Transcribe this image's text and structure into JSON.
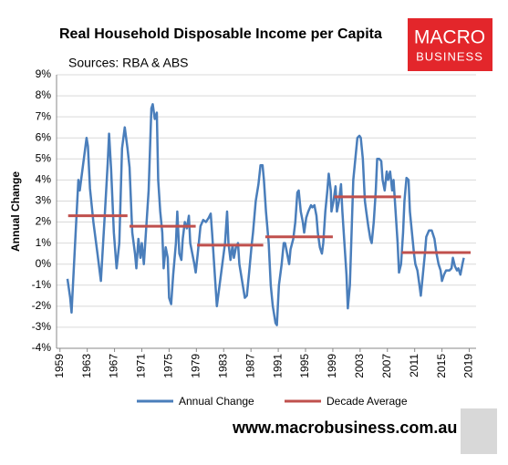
{
  "chart_data": {
    "type": "line",
    "title": "Real Household Disposable Income per Capita",
    "subtitle": "Sources: RBA & ABS",
    "y_label": "Annual Change",
    "logo": {
      "line1": "MACRO",
      "line2": "BUSINESS"
    },
    "footer": "www.macrobusiness.com.au",
    "xlim": [
      1958.5,
      2020
    ],
    "xticks": [
      1959,
      1963,
      1967,
      1971,
      1975,
      1979,
      1983,
      1987,
      1991,
      1995,
      1999,
      2003,
      2007,
      2011,
      2015,
      2019
    ],
    "ylim": [
      -4,
      9
    ],
    "yticks": [
      {
        "value": -4,
        "label": "-4%"
      },
      {
        "value": -3,
        "label": "-3%"
      },
      {
        "value": -2,
        "label": "-2%"
      },
      {
        "value": -1,
        "label": "-1%"
      },
      {
        "value": 0,
        "label": "0%"
      },
      {
        "value": 1,
        "label": "1%"
      },
      {
        "value": 2,
        "label": "2%"
      },
      {
        "value": 3,
        "label": "3%"
      },
      {
        "value": 4,
        "label": "4%"
      },
      {
        "value": 5,
        "label": "5%"
      },
      {
        "value": 6,
        "label": "6%"
      },
      {
        "value": 7,
        "label": "7%"
      },
      {
        "value": 8,
        "label": "8%"
      },
      {
        "value": 9,
        "label": "9%"
      }
    ],
    "grid": true,
    "series": [
      {
        "name": "Annual Change",
        "color": "#4a7ebb",
        "x": [
          1960.1,
          1960.5,
          1960.7,
          1961.3,
          1961.7,
          1961.9,
          1962.3,
          1962.9,
          1963.1,
          1963.4,
          1963.9,
          1964.5,
          1965.0,
          1965.6,
          1966.0,
          1966.2,
          1966.5,
          1966.9,
          1967.3,
          1967.7,
          1968.1,
          1968.5,
          1968.9,
          1969.2,
          1969.6,
          1970.0,
          1970.2,
          1970.5,
          1970.8,
          1971.0,
          1971.3,
          1971.6,
          1972.0,
          1972.4,
          1972.6,
          1972.9,
          1973.2,
          1973.4,
          1973.7,
          1974.0,
          1974.2,
          1974.5,
          1974.8,
          1975.0,
          1975.3,
          1975.6,
          1976.0,
          1976.2,
          1976.5,
          1976.8,
          1977.0,
          1977.3,
          1977.6,
          1977.9,
          1978.1,
          1978.4,
          1978.7,
          1978.9,
          1979.2,
          1979.6,
          1980.0,
          1980.4,
          1980.8,
          1981.1,
          1981.3,
          1981.6,
          1982.0,
          1982.4,
          1982.8,
          1983.2,
          1983.5,
          1983.7,
          1984.0,
          1984.3,
          1984.5,
          1984.8,
          1985.1,
          1985.3,
          1985.7,
          1986.1,
          1986.4,
          1986.7,
          1987.1,
          1987.3,
          1987.7,
          1988.1,
          1988.4,
          1988.7,
          1988.9,
          1989.2,
          1989.6,
          1989.9,
          1990.2,
          1990.6,
          1990.8,
          1991.1,
          1991.5,
          1991.8,
          1992.0,
          1992.3,
          1992.6,
          1992.8,
          1993.2,
          1993.5,
          1993.8,
          1994.0,
          1994.3,
          1994.6,
          1994.8,
          1995.1,
          1995.4,
          1995.8,
          1996.0,
          1996.3,
          1996.6,
          1996.8,
          1997.1,
          1997.4,
          1997.6,
          1997.9,
          1998.2,
          1998.4,
          1998.7,
          1998.8,
          1999.1,
          1999.4,
          1999.6,
          1999.9,
          2000.2,
          2000.4,
          2000.7,
          2001.0,
          2001.2,
          2001.5,
          2001.8,
          2002.0,
          2002.3,
          2002.6,
          2002.9,
          2003.1,
          2003.4,
          2003.7,
          2003.9,
          2004.2,
          2004.5,
          2004.7,
          2005.0,
          2005.3,
          2005.5,
          2005.8,
          2006.1,
          2006.3,
          2006.6,
          2006.9,
          2007.1,
          2007.4,
          2007.7,
          2007.9,
          2008.2,
          2008.5,
          2008.7,
          2009.0,
          2009.3,
          2009.5,
          2009.8,
          2010.1,
          2010.3,
          2010.6,
          2010.9,
          2011.1,
          2011.4,
          2011.7,
          2011.9,
          2012.2,
          2012.5,
          2012.7,
          2013.1,
          2013.5,
          2013.9,
          2014.2,
          2014.5,
          2014.8,
          2015.0,
          2015.3,
          2015.6,
          2015.8,
          2016.1,
          2016.4,
          2016.6,
          2016.9,
          2017.2,
          2017.4,
          2017.7,
          2018.0,
          2018.2
        ],
        "values": [
          -0.7,
          -1.6,
          -2.3,
          1.5,
          4.0,
          3.5,
          4.5,
          6.0,
          5.6,
          3.6,
          2.0,
          0.5,
          -0.8,
          2.5,
          4.8,
          6.2,
          4.5,
          1.5,
          -0.2,
          1.0,
          5.5,
          6.5,
          5.5,
          4.6,
          1.5,
          0.5,
          -0.2,
          1.2,
          0.3,
          1.0,
          0.0,
          1.5,
          3.5,
          7.4,
          7.6,
          6.9,
          7.2,
          4.0,
          2.5,
          1.5,
          -0.2,
          0.8,
          0.3,
          -1.6,
          -1.9,
          -0.5,
          1.0,
          2.5,
          0.5,
          0.2,
          1.2,
          2.0,
          1.7,
          2.3,
          1.0,
          0.5,
          0.0,
          -0.4,
          0.5,
          1.8,
          2.1,
          2.0,
          2.2,
          2.4,
          1.5,
          0.0,
          -2.0,
          -1.0,
          0.0,
          1.0,
          2.5,
          1.0,
          0.2,
          0.9,
          0.3,
          0.8,
          1.0,
          0.0,
          -0.8,
          -1.6,
          -1.5,
          -0.5,
          0.9,
          1.5,
          3.0,
          3.8,
          4.7,
          4.7,
          4.0,
          2.5,
          1.0,
          -1.0,
          -2.0,
          -2.8,
          -2.9,
          -1.0,
          0.0,
          1.0,
          1.0,
          0.5,
          0.0,
          0.7,
          1.2,
          2.0,
          3.4,
          3.5,
          2.5,
          2.0,
          1.5,
          2.2,
          2.5,
          2.8,
          2.7,
          2.8,
          2.3,
          1.5,
          0.8,
          0.5,
          1.0,
          2.5,
          3.5,
          4.3,
          3.5,
          2.5,
          3.0,
          3.7,
          2.5,
          3.0,
          3.8,
          2.5,
          1.0,
          -0.5,
          -2.1,
          -1.0,
          2.0,
          4.0,
          5.0,
          6.0,
          6.1,
          6.0,
          5.0,
          3.0,
          2.5,
          1.8,
          1.2,
          1.0,
          2.0,
          3.5,
          5.0,
          5.0,
          4.9,
          4.0,
          3.5,
          4.4,
          4.0,
          4.4,
          3.5,
          4.0,
          2.5,
          1.0,
          -0.4,
          0.0,
          1.5,
          3.0,
          4.1,
          4.0,
          2.5,
          1.5,
          0.5,
          0.0,
          -0.3,
          -1.0,
          -1.5,
          -0.5,
          0.5,
          1.3,
          1.6,
          1.6,
          1.2,
          0.5,
          0.0,
          -0.3,
          -0.8,
          -0.5,
          -0.3,
          -0.3,
          -0.3,
          -0.2,
          0.3,
          -0.1,
          -0.3,
          -0.2,
          -0.5,
          0.0,
          0.3
        ]
      },
      {
        "name": "Decade Average",
        "color": "#c0504d",
        "start": [
          1960.2,
          1969.2,
          1979.1,
          1989.1,
          1999.2,
          2009.1
        ],
        "end": [
          1968.9,
          1978.9,
          1988.8,
          1999.0,
          2009.0,
          2019.2
        ],
        "values": [
          2.3,
          1.8,
          0.9,
          1.3,
          3.2,
          0.55
        ]
      }
    ]
  }
}
